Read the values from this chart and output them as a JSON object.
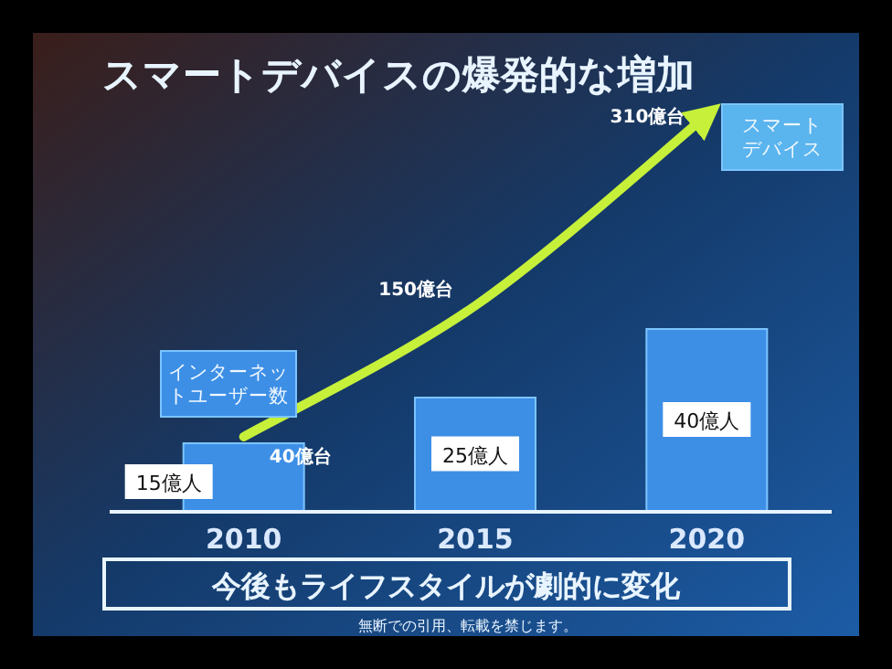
{
  "chart_data": {
    "type": "bar",
    "title": "スマートデバイスの爆発的な増加",
    "categories": [
      "2010",
      "2015",
      "2020"
    ],
    "series": [
      {
        "name": "インターネットユーザー数",
        "color": "#3d8fe6",
        "values": [
          15,
          25,
          40
        ],
        "value_labels": [
          "15億人",
          "25億人",
          "40億人"
        ]
      },
      {
        "name": "スマートデバイス",
        "type": "line",
        "axis": "y2",
        "color": "#c6f03a",
        "values": [
          40,
          150,
          310
        ],
        "value_labels": [
          "40億台",
          "150億台",
          "310億台"
        ]
      }
    ],
    "annotations": [
      "今後もライフスタイルが劇的に変化",
      "無断での引用、転載を禁じます。"
    ],
    "legend": "right",
    "marker": "none",
    "line_style": "solid"
  }
}
